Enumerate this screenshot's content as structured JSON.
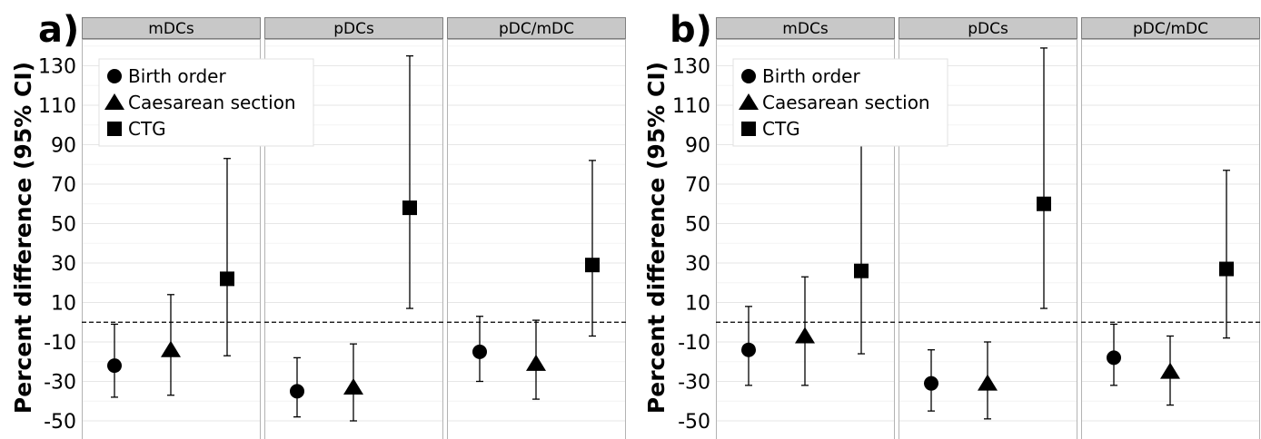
{
  "chart_data": [
    {
      "type": "scatter",
      "panel_label": "a)",
      "ylabel": "Percent difference (95% CI)",
      "ylim": [
        -55,
        140
      ],
      "yticks": [
        -50,
        -30,
        -10,
        10,
        30,
        50,
        70,
        90,
        110,
        130
      ],
      "reference_line": 0,
      "facets": [
        "mDCs",
        "pDCs",
        "pDC/mDC"
      ],
      "legend": {
        "position": "top-left",
        "entries": [
          {
            "label": "Birth order",
            "shape": "circle"
          },
          {
            "label": "Caesarean section",
            "shape": "triangle"
          },
          {
            "label": "CTG",
            "shape": "square"
          }
        ]
      },
      "series": [
        {
          "name": "Birth order",
          "shape": "circle",
          "values": [
            {
              "facet": "mDCs",
              "y": -22,
              "lo": -38,
              "hi": -1
            },
            {
              "facet": "pDCs",
              "y": -35,
              "lo": -48,
              "hi": -18
            },
            {
              "facet": "pDC/mDC",
              "y": -15,
              "lo": -30,
              "hi": 3
            }
          ]
        },
        {
          "name": "Caesarean section",
          "shape": "triangle",
          "values": [
            {
              "facet": "mDCs",
              "y": -14,
              "lo": -37,
              "hi": 14
            },
            {
              "facet": "pDCs",
              "y": -33,
              "lo": -50,
              "hi": -11
            },
            {
              "facet": "pDC/mDC",
              "y": -21,
              "lo": -39,
              "hi": 1
            }
          ]
        },
        {
          "name": "CTG",
          "shape": "square",
          "values": [
            {
              "facet": "mDCs",
              "y": 22,
              "lo": -17,
              "hi": 83
            },
            {
              "facet": "pDCs",
              "y": 58,
              "lo": 7,
              "hi": 135
            },
            {
              "facet": "pDC/mDC",
              "y": 29,
              "lo": -7,
              "hi": 82
            }
          ]
        }
      ]
    },
    {
      "type": "scatter",
      "panel_label": "b)",
      "ylabel": "Percent difference (95% CI)",
      "ylim": [
        -55,
        140
      ],
      "yticks": [
        -50,
        -30,
        -10,
        10,
        30,
        50,
        70,
        90,
        110,
        130
      ],
      "reference_line": 0,
      "facets": [
        "mDCs",
        "pDCs",
        "pDC/mDC"
      ],
      "legend": {
        "position": "top-left",
        "entries": [
          {
            "label": "Birth order",
            "shape": "circle"
          },
          {
            "label": "Caesarean section",
            "shape": "triangle"
          },
          {
            "label": "CTG",
            "shape": "square"
          }
        ]
      },
      "series": [
        {
          "name": "Birth order",
          "shape": "circle",
          "values": [
            {
              "facet": "mDCs",
              "y": -14,
              "lo": -32,
              "hi": 8
            },
            {
              "facet": "pDCs",
              "y": -31,
              "lo": -45,
              "hi": -14
            },
            {
              "facet": "pDC/mDC",
              "y": -18,
              "lo": -32,
              "hi": -1
            }
          ]
        },
        {
          "name": "Caesarean section",
          "shape": "triangle",
          "values": [
            {
              "facet": "mDCs",
              "y": -7,
              "lo": -32,
              "hi": 23
            },
            {
              "facet": "pDCs",
              "y": -31,
              "lo": -49,
              "hi": -10
            },
            {
              "facet": "pDC/mDC",
              "y": -25,
              "lo": -42,
              "hi": -7
            }
          ]
        },
        {
          "name": "CTG",
          "shape": "square",
          "values": [
            {
              "facet": "mDCs",
              "y": 26,
              "lo": -16,
              "hi": 90
            },
            {
              "facet": "pDCs",
              "y": 60,
              "lo": 7,
              "hi": 139
            },
            {
              "facet": "pDC/mDC",
              "y": 27,
              "lo": -8,
              "hi": 77
            }
          ]
        }
      ]
    }
  ]
}
